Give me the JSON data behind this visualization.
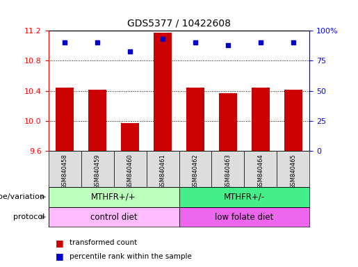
{
  "title": "GDS5377 / 10422608",
  "samples": [
    "GSM840458",
    "GSM840459",
    "GSM840460",
    "GSM840461",
    "GSM840462",
    "GSM840463",
    "GSM840464",
    "GSM840465"
  ],
  "bar_values": [
    10.44,
    10.41,
    9.97,
    11.17,
    10.44,
    10.37,
    10.44,
    10.41
  ],
  "percentile_values": [
    90,
    90,
    83,
    93,
    90,
    88,
    90,
    90
  ],
  "ylim": [
    9.6,
    11.2
  ],
  "yticks": [
    9.6,
    10.0,
    10.4,
    10.8,
    11.2
  ],
  "right_yticks": [
    0,
    25,
    50,
    75,
    100
  ],
  "right_ylabels": [
    "0",
    "25",
    "50",
    "75",
    "100%"
  ],
  "bar_color": "#cc0000",
  "dot_color": "#0000cc",
  "bar_width": 0.55,
  "genotype_labels": [
    "MTHFR+/+",
    "MTHFR+/-"
  ],
  "genotype_ranges": [
    [
      0,
      4
    ],
    [
      4,
      8
    ]
  ],
  "genotype_colors": [
    "#bbffbb",
    "#44ee88"
  ],
  "protocol_labels": [
    "control diet",
    "low folate diet"
  ],
  "protocol_ranges": [
    [
      0,
      4
    ],
    [
      4,
      8
    ]
  ],
  "protocol_colors": [
    "#ffbbff",
    "#ee66ee"
  ],
  "legend_items": [
    {
      "label": "transformed count",
      "color": "#cc0000"
    },
    {
      "label": "percentile rank within the sample",
      "color": "#0000cc"
    }
  ],
  "genotype_label_text": "genotype/variation",
  "protocol_label_text": "protocol"
}
